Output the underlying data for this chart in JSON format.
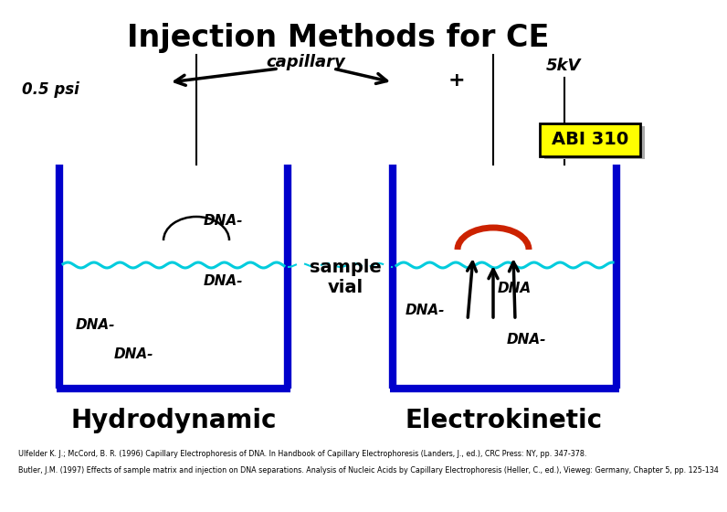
{
  "title": "Injection Methods for CE",
  "title_fontsize": 24,
  "bg_color": "#ffffff",
  "blue_color": "#0000cc",
  "cyan_color": "#00ccdd",
  "red_color": "#cc2200",
  "black_color": "#000000",
  "yellow_color": "#ffff00",
  "gray_color": "#aaaaaa",
  "label_hydrodynamic": "Hydrodynamic",
  "label_electrokinetic": "Electrokinetic",
  "label_capillary": "capillary",
  "label_psi": "0.5 psi",
  "label_plus": "+",
  "label_5kv": "5kV",
  "label_abi": "ABI 310",
  "label_sample": "sample\nvial",
  "label_dna": "DNA-",
  "label_dna_plain": "DNA",
  "footnote1": "Ulfelder K. J.; McCord, B. R. (1996) Capillary Electrophoresis of DNA. In Handbook of Capillary Electrophoresis (Landers, J., ed.), CRC Press: NY, pp. 347-378.",
  "footnote2": "Butler, J.M. (1997) Effects of sample matrix and injection on DNA separations. Analysis of Nucleic Acids by Capillary Electrophoresis (Heller, C., ed.), Vieweg: Germany, Chapter 5, pp. 125-134"
}
